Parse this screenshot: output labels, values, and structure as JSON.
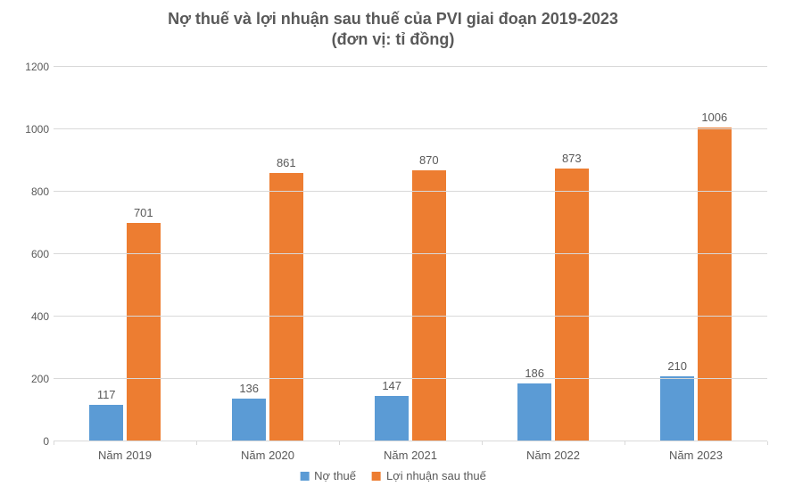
{
  "chart": {
    "type": "bar",
    "title_line1": "Nợ thuế và lợi nhuận sau thuế của PVI giai đoạn 2019-2023",
    "title_line2": "(đơn vị: tỉ đồng)",
    "title_fontsize": 18,
    "title_color": "#595959",
    "background_color": "#ffffff",
    "grid_color": "#d9d9d9",
    "axis_text_color": "#595959",
    "label_fontsize": 13,
    "ylim": [
      0,
      1200
    ],
    "ytick_step": 200,
    "yticks": [
      0,
      200,
      400,
      600,
      800,
      1000,
      1200
    ],
    "categories": [
      "Năm 2019",
      "Năm 2020",
      "Năm 2021",
      "Năm 2022",
      "Năm 2023"
    ],
    "series": [
      {
        "name": "Nợ thuế",
        "color": "#5b9bd5",
        "values": [
          117,
          136,
          147,
          186,
          210
        ]
      },
      {
        "name": "Lợi nhuận sau thuế",
        "color": "#ed7d31",
        "values": [
          701,
          861,
          870,
          873,
          1006
        ]
      }
    ],
    "bar_width_pct": 24,
    "bar_gap_pct": 2,
    "group_left_offset_pct": 25
  }
}
